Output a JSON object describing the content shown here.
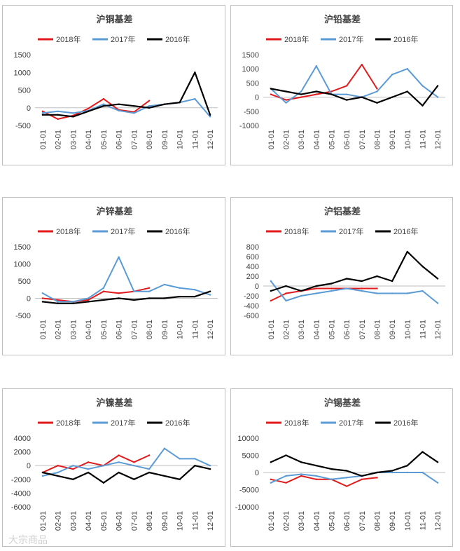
{
  "legend": [
    "2018年",
    "2017年",
    "2016年"
  ],
  "colors": {
    "s2018": "#e31a1c",
    "s2017": "#5b9bd5",
    "s2016": "#000000"
  },
  "xticks": [
    "01-01",
    "02-01",
    "03-01",
    "04-01",
    "05-01",
    "06-01",
    "07-01",
    "08-01",
    "09-01",
    "10-01",
    "11-01",
    "12-01"
  ],
  "watermark": "大宗商品",
  "chart_data": [
    {
      "title": "沪铜基差",
      "type": "line",
      "ylim": [
        -500,
        1500
      ],
      "yticks": [
        -500,
        0,
        500,
        1000,
        1500
      ],
      "x": [
        "01-01",
        "02-01",
        "03-01",
        "04-01",
        "05-01",
        "06-01",
        "07-01",
        "08-01",
        "09-01",
        "10-01",
        "11-01",
        "12-01"
      ],
      "series": [
        {
          "name": "2018年",
          "values": [
            -100,
            -320,
            -220,
            -20,
            250,
            -60,
            -120,
            200,
            null,
            null,
            null,
            null
          ]
        },
        {
          "name": "2017年",
          "values": [
            -150,
            -100,
            -150,
            -80,
            100,
            -80,
            -150,
            50,
            100,
            150,
            250,
            -250
          ]
        },
        {
          "name": "2016年",
          "values": [
            -200,
            -200,
            -250,
            -100,
            50,
            100,
            50,
            0,
            100,
            150,
            1000,
            -200
          ]
        }
      ]
    },
    {
      "title": "沪铅基差",
      "type": "line",
      "ylim": [
        -1000,
        1500
      ],
      "yticks": [
        -1000,
        -500,
        0,
        500,
        1000,
        1500
      ],
      "x": [
        "01-01",
        "02-01",
        "03-01",
        "04-01",
        "05-01",
        "06-01",
        "07-01",
        "08-01",
        "09-01",
        "10-01",
        "11-01",
        "12-01"
      ],
      "series": [
        {
          "name": "2018年",
          "values": [
            100,
            -100,
            0,
            100,
            200,
            400,
            1150,
            300,
            null,
            null,
            null,
            null
          ]
        },
        {
          "name": "2017年",
          "values": [
            300,
            -200,
            200,
            1100,
            100,
            100,
            0,
            200,
            800,
            1000,
            400,
            0
          ]
        },
        {
          "name": "2016年",
          "values": [
            300,
            200,
            100,
            200,
            100,
            -100,
            0,
            -200,
            0,
            200,
            -300,
            400
          ]
        }
      ]
    },
    {
      "title": "沪锌基差",
      "type": "line",
      "ylim": [
        -500,
        1500
      ],
      "yticks": [
        -500,
        0,
        500,
        1000,
        1500
      ],
      "x": [
        "01-01",
        "02-01",
        "03-01",
        "04-01",
        "05-01",
        "06-01",
        "07-01",
        "08-01",
        "09-01",
        "10-01",
        "11-01",
        "12-01"
      ],
      "series": [
        {
          "name": "2018年",
          "values": [
            0,
            -50,
            -100,
            -50,
            200,
            150,
            200,
            300,
            null,
            null,
            null,
            null
          ]
        },
        {
          "name": "2017年",
          "values": [
            150,
            -100,
            -100,
            0,
            300,
            1200,
            200,
            200,
            400,
            300,
            250,
            100
          ]
        },
        {
          "name": "2016年",
          "values": [
            -100,
            -150,
            -150,
            -100,
            -50,
            0,
            -50,
            0,
            0,
            50,
            50,
            200
          ]
        }
      ]
    },
    {
      "title": "沪铝基差",
      "type": "line",
      "ylim": [
        -600,
        800
      ],
      "yticks": [
        -600,
        -400,
        -200,
        0,
        200,
        400,
        600,
        800
      ],
      "x": [
        "01-01",
        "02-01",
        "03-01",
        "04-01",
        "05-01",
        "06-01",
        "07-01",
        "08-01",
        "09-01",
        "10-01",
        "11-01",
        "12-01"
      ],
      "series": [
        {
          "name": "2018年",
          "values": [
            -300,
            -150,
            -100,
            -50,
            -50,
            -50,
            -50,
            -50,
            null,
            null,
            null,
            null
          ]
        },
        {
          "name": "2017年",
          "values": [
            100,
            -300,
            -200,
            -150,
            -100,
            -50,
            -100,
            -150,
            -150,
            -150,
            -100,
            -350
          ]
        },
        {
          "name": "2016年",
          "values": [
            -100,
            0,
            -100,
            0,
            50,
            150,
            100,
            200,
            100,
            700,
            400,
            150
          ]
        }
      ]
    },
    {
      "title": "沪镍基差",
      "type": "line",
      "ylim": [
        -6000,
        4000
      ],
      "yticks": [
        -6000,
        -4000,
        -2000,
        0,
        2000,
        4000
      ],
      "x": [
        "01-01",
        "02-01",
        "03-01",
        "04-01",
        "05-01",
        "06-01",
        "07-01",
        "08-01",
        "09-01",
        "10-01",
        "11-01",
        "12-01"
      ],
      "series": [
        {
          "name": "2018年",
          "values": [
            -1000,
            0,
            -500,
            500,
            0,
            1500,
            500,
            1500,
            null,
            null,
            null,
            null
          ]
        },
        {
          "name": "2017年",
          "values": [
            -1500,
            -1000,
            0,
            -500,
            0,
            500,
            0,
            -500,
            2500,
            1000,
            1000,
            0
          ]
        },
        {
          "name": "2016年",
          "values": [
            -1000,
            -1500,
            -2000,
            -1000,
            -2500,
            -1000,
            -2000,
            -1000,
            -1500,
            -2000,
            0,
            -500
          ]
        }
      ]
    },
    {
      "title": "沪锡基差",
      "type": "line",
      "ylim": [
        -10000,
        10000
      ],
      "yticks": [
        -10000,
        -5000,
        0,
        5000,
        10000
      ],
      "x": [
        "01-01",
        "02-01",
        "03-01",
        "04-01",
        "05-01",
        "06-01",
        "07-01",
        "08-01",
        "09-01",
        "10-01",
        "11-01",
        "12-01"
      ],
      "series": [
        {
          "name": "2018年",
          "values": [
            -2000,
            -3000,
            -1000,
            -2000,
            -2000,
            -4000,
            -2000,
            -1500,
            null,
            null,
            null,
            null
          ]
        },
        {
          "name": "2017年",
          "values": [
            -3000,
            -1000,
            -500,
            -1000,
            -2000,
            -1500,
            -1000,
            0,
            0,
            0,
            0,
            -3000
          ]
        },
        {
          "name": "2016年",
          "values": [
            3000,
            5000,
            3000,
            2000,
            1000,
            500,
            -1000,
            0,
            500,
            2000,
            6000,
            3000
          ]
        }
      ]
    }
  ]
}
